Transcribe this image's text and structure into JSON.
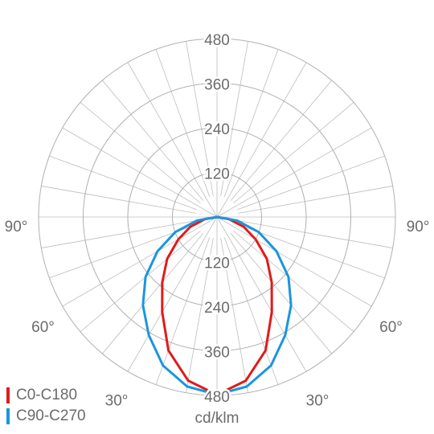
{
  "chart_data": {
    "type": "polar",
    "angle_unit": "degrees from nadir",
    "angles": [
      -90,
      -80,
      -70,
      -60,
      -50,
      -40,
      -30,
      -20,
      -10,
      0,
      10,
      20,
      30,
      40,
      50,
      60,
      70,
      80,
      90
    ],
    "series": [
      {
        "name": "C0-C180",
        "color": "#e01b1b",
        "values": [
          0,
          33,
          76,
          120,
          175,
          229,
          295,
          382,
          447,
          478,
          447,
          382,
          295,
          229,
          175,
          120,
          76,
          33,
          0
        ]
      },
      {
        "name": "C90-C270",
        "color": "#1b95dd",
        "values": [
          0,
          55,
          120,
          185,
          251,
          310,
          367,
          425,
          463,
          478,
          463,
          425,
          367,
          310,
          251,
          185,
          120,
          55,
          0
        ]
      }
    ],
    "rlim": [
      0,
      480
    ],
    "rticks": [
      120,
      240,
      360,
      480
    ],
    "angle_ticks": [
      {
        "value": -90,
        "label": "90°"
      },
      {
        "value": -60,
        "label": "60°"
      },
      {
        "value": -30,
        "label": "30°"
      },
      {
        "value": 30,
        "label": "30°"
      },
      {
        "value": 60,
        "label": "60°"
      },
      {
        "value": 90,
        "label": "90°"
      }
    ],
    "axis_label": "cd/klm",
    "legend": "bottom-left"
  }
}
